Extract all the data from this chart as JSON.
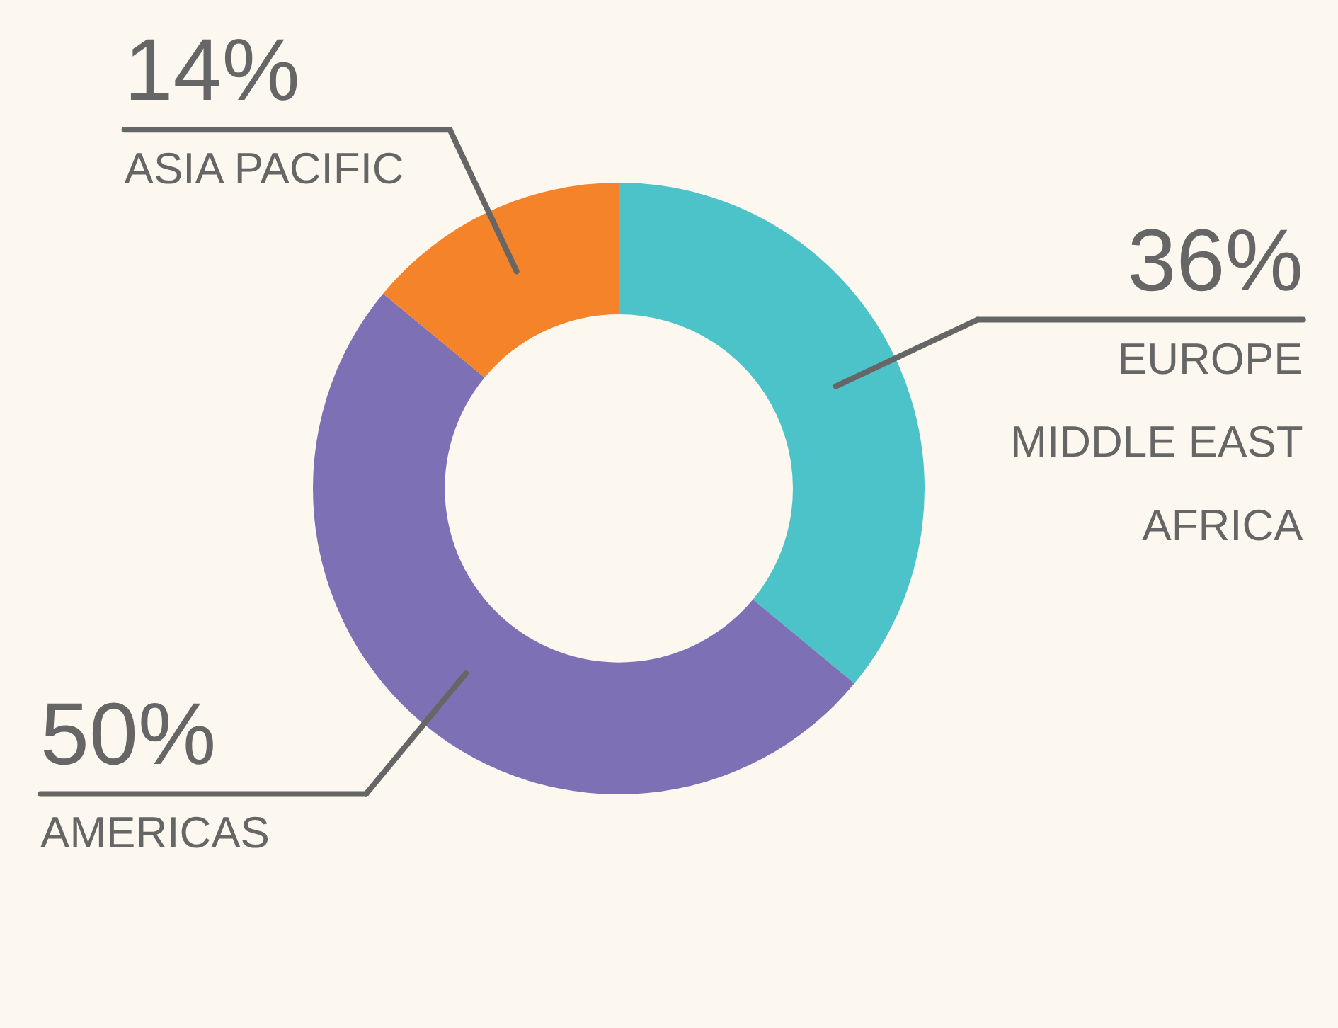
{
  "chart_data": {
    "type": "donut",
    "categories": [
      "EUROPE\nMIDDLE EAST\nAFRICA",
      "AMERICAS",
      "ASIA PACIFIC"
    ],
    "values": [
      36,
      50,
      14
    ],
    "value_labels": [
      "36%",
      "50%",
      "14%"
    ],
    "colors": [
      "#4cc3c8",
      "#7e70b5",
      "#f5832a"
    ]
  }
}
